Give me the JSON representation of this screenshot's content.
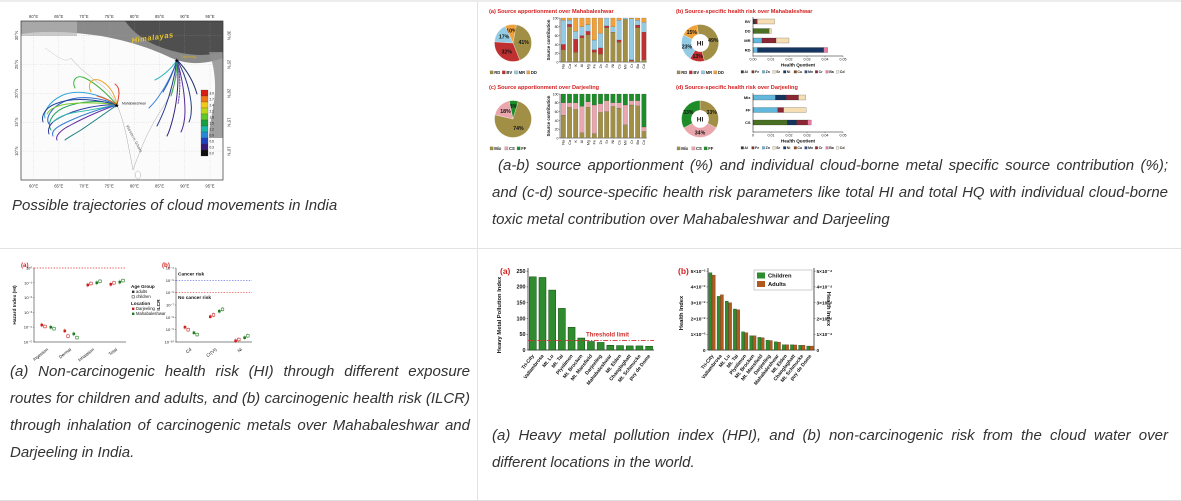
{
  "captions": {
    "map": "Possible trajectories of cloud movements in India",
    "apportionment": "(a-b) source apportionment (%) and individual cloud-borne metal specific source contribution (%); and (c-d) source-specific health risk parameters like total HI and total HQ with individual cloud-borne toxic metal contribution over Mahabaleshwar and Darjeeling",
    "health_risk": "(a) Non-carcinogenic health risk (HI) through different exposure routes for children and adults, and (b) carcinogenic health risk (ILCR) through inhalation of carcinogenic metals over Mahabaleshwar and Darjeeling in India.",
    "hpi": "(a) Heavy metal pollution index (HPI), and (b) non-carcinogenic risk from the cloud water over different locations in the world."
  },
  "map": {
    "himalayas": "Himalayas",
    "western_ghat": "Western Ghats",
    "site1": "Mahabaleshwar",
    "site2": "Darjeeling",
    "lon_ticks": [
      "60°E",
      "65°E",
      "70°E",
      "75°E",
      "80°E",
      "85°E",
      "90°E",
      "95°E"
    ],
    "lat_ticks": [
      "30°N",
      "25°N",
      "20°N",
      "15°N",
      "10°N"
    ],
    "colorbar": {
      "labels": [
        "3.0",
        "2.7",
        "2.4",
        "2.1",
        "1.8",
        "1.5",
        "1.2",
        "0.9",
        "0.6",
        "0.3",
        "0.0"
      ],
      "colors": [
        "#d81e10",
        "#f07818",
        "#f0c818",
        "#b8d818",
        "#60c828",
        "#18a040",
        "#18b8a8",
        "#2888d8",
        "#2040c0",
        "#381878",
        "#101010"
      ]
    }
  },
  "chart_data": [
    {
      "id": "pie_a",
      "type": "pie",
      "title": "(a)  Source apportionment over Mahabaleshwar",
      "start": -25,
      "slices": [
        {
          "label": "DD",
          "value": 10,
          "color": "#f0a13a"
        },
        {
          "label": "RD",
          "value": 41,
          "color": "#a18f45"
        },
        {
          "label": "BV",
          "value": 32,
          "color": "#bf3030"
        },
        {
          "label": "MR",
          "value": 17,
          "color": "#92cbe3"
        }
      ],
      "legend": [
        [
          "RD",
          "#a18f45"
        ],
        [
          "BV",
          "#bf3030"
        ],
        [
          "MR",
          "#92cbe3"
        ],
        [
          "DD",
          "#f0a13a"
        ]
      ]
    },
    {
      "id": "stack_a",
      "type": "stacked-bar",
      "ylabel": "Source contribution",
      "yticks": [
        0,
        20,
        40,
        60,
        80,
        100
      ],
      "categories": [
        "Na",
        "Ca",
        "K",
        "Al",
        "Mg",
        "Fe",
        "Zn",
        "Sr",
        "Ni",
        "Cu",
        "Mn",
        "Cr",
        "Ba",
        "Cd"
      ],
      "series": [
        {
          "name": "RD",
          "color": "#a18f45",
          "values": [
            28,
            80,
            22,
            55,
            62,
            22,
            18,
            78,
            68,
            45,
            97,
            3,
            78,
            5
          ]
        },
        {
          "name": "BV",
          "color": "#bf3030",
          "values": [
            12,
            6,
            30,
            5,
            8,
            6,
            14,
            4,
            0,
            5,
            0,
            2,
            6,
            63
          ]
        },
        {
          "name": "MR",
          "color": "#92cbe3",
          "values": [
            55,
            9,
            18,
            20,
            15,
            22,
            33,
            18,
            12,
            45,
            3,
            93,
            11,
            22
          ]
        },
        {
          "name": "DD",
          "color": "#f0a13a",
          "values": [
            5,
            5,
            30,
            20,
            15,
            50,
            35,
            0,
            20,
            5,
            0,
            2,
            5,
            10
          ]
        }
      ]
    },
    {
      "id": "donut_b",
      "type": "donut",
      "title": "(b)  Source-specific health risk over Mahabaleshwar",
      "center": "HI",
      "start": -10,
      "slices": [
        {
          "label": "RD",
          "value": 49,
          "color": "#a18f45"
        },
        {
          "label": "BV",
          "value": 13,
          "color": "#bf3030"
        },
        {
          "label": "MR",
          "value": 23,
          "color": "#92cbe3"
        },
        {
          "label": "DD",
          "value": 15,
          "color": "#f0a13a"
        }
      ],
      "legend": [
        [
          "RD",
          "#a18f45"
        ],
        [
          "BV",
          "#bf3030"
        ],
        [
          "MR",
          "#92cbe3"
        ],
        [
          "DD",
          "#f0a13a"
        ]
      ]
    },
    {
      "id": "hbar_b",
      "type": "hbar",
      "xlabel": "Health Quotient",
      "xticks": [
        "0.00",
        "0.01",
        "0.02",
        "0.03",
        "0.04",
        "0.05"
      ],
      "xmax": 0.05,
      "rows": [
        {
          "label": "BV",
          "segments": [
            [
              "#3a3a3a",
              0.0012
            ],
            [
              "#8b2635",
              0.0012
            ],
            [
              "#f5deb3",
              0.0096
            ]
          ]
        },
        {
          "label": "DD",
          "segments": [
            [
              "#4a7023",
              0.009
            ],
            [
              "#f5deb3",
              0.0012
            ]
          ]
        },
        {
          "label": "MR",
          "segments": [
            [
              "#62b8dc",
              0.005
            ],
            [
              "#8b2635",
              0.0078
            ],
            [
              "#f5deb3",
              0.0072
            ]
          ]
        },
        {
          "label": "RD",
          "segments": [
            [
              "#62b8dc",
              0.0025
            ],
            [
              "#16355e",
              0.0368
            ],
            [
              "#e87ea1",
              0.0022
            ]
          ]
        }
      ],
      "metals": [
        [
          "Al",
          "#3a3a3a"
        ],
        [
          "Fe",
          "#7a3b2e"
        ],
        [
          "Zn",
          "#62b8dc"
        ],
        [
          "Sr",
          "#f5deb3"
        ],
        [
          "Ni",
          "#16355e"
        ],
        [
          "Cu",
          "#8b4513"
        ],
        [
          "Mn",
          "#2e4d8e"
        ],
        [
          "Cr",
          "#8b2635"
        ],
        [
          "Ba",
          "#e87ea1"
        ],
        [
          "Cd",
          "#f2e8d5"
        ]
      ]
    },
    {
      "id": "pie_c",
      "type": "pie",
      "title": "(c)  Source apportionment over Darjeeling",
      "start": -12,
      "slices": [
        {
          "label": "FF",
          "value": 8,
          "color": "#1e8c28"
        },
        {
          "label": "Mix",
          "value": 74,
          "color": "#a18f45"
        },
        {
          "label": "CS",
          "value": 18,
          "color": "#e9a6ad"
        }
      ],
      "legend": [
        [
          "Mix",
          "#a18f45"
        ],
        [
          "CS",
          "#e9a6ad"
        ],
        [
          "FF",
          "#1e8c28"
        ]
      ]
    },
    {
      "id": "stack_c",
      "type": "stacked-bar",
      "ylabel": "Source contribution",
      "yticks": [
        0,
        20,
        40,
        60,
        80,
        100
      ],
      "categories": [
        "Na",
        "Ca",
        "K",
        "Al",
        "Mg",
        "Fe",
        "Zn",
        "Sr",
        "Ni",
        "Cu",
        "Mn",
        "Cr",
        "Ba",
        "Cd"
      ],
      "series": [
        {
          "name": "Mix",
          "color": "#a18f45",
          "values": [
            52,
            70,
            65,
            12,
            70,
            10,
            58,
            60,
            72,
            68,
            30,
            75,
            73,
            15
          ]
        },
        {
          "name": "CS",
          "color": "#e9a6ad",
          "values": [
            28,
            10,
            15,
            60,
            12,
            65,
            20,
            25,
            8,
            12,
            45,
            10,
            12,
            10
          ]
        },
        {
          "name": "FF",
          "color": "#1e8c28",
          "values": [
            20,
            20,
            20,
            28,
            18,
            25,
            22,
            15,
            20,
            20,
            25,
            15,
            15,
            75
          ]
        }
      ]
    },
    {
      "id": "donut_d",
      "type": "donut",
      "title": "(d)  Source-specific health risk over Darjeeling",
      "center": "HI",
      "start": 0,
      "slices": [
        {
          "label": "Mix",
          "value": 33,
          "color": "#a18f45"
        },
        {
          "label": "CS",
          "value": 34,
          "color": "#e9a6ad"
        },
        {
          "label": "FF",
          "value": 33,
          "color": "#1e8c28"
        }
      ],
      "legend": [
        [
          "Mix",
          "#a18f45"
        ],
        [
          "CS",
          "#e9a6ad"
        ],
        [
          "FF",
          "#1e8c28"
        ]
      ]
    },
    {
      "id": "hbar_d",
      "type": "hbar",
      "xlabel": "Health Quotient",
      "xticks": [
        "0",
        "0.01",
        "0.02",
        "0.03",
        "0.04",
        "0.05"
      ],
      "xmax": 0.05,
      "rows": [
        {
          "label": "Mix",
          "segments": [
            [
              "#62b8dc",
              0.0125
            ],
            [
              "#16355e",
              0.006
            ],
            [
              "#8b2635",
              0.0068
            ],
            [
              "#f5deb3",
              0.004
            ]
          ]
        },
        {
          "label": "FF",
          "segments": [
            [
              "#62b8dc",
              0.0138
            ],
            [
              "#8b2635",
              0.0032
            ],
            [
              "#f5deb3",
              0.0125
            ]
          ]
        },
        {
          "label": "CS",
          "segments": [
            [
              "#4a7023",
              0.019
            ],
            [
              "#16355e",
              0.0052
            ],
            [
              "#8b2635",
              0.0062
            ],
            [
              "#e87ea1",
              0.002
            ]
          ]
        }
      ],
      "metals": [
        [
          "Al",
          "#3a3a3a"
        ],
        [
          "Fe",
          "#7a3b2e"
        ],
        [
          "Zn",
          "#62b8dc"
        ],
        [
          "Sr",
          "#f5deb3"
        ],
        [
          "Ni",
          "#16355e"
        ],
        [
          "Cu",
          "#8b4513"
        ],
        [
          "Mn",
          "#2e4d8e"
        ],
        [
          "Cr",
          "#8b2635"
        ],
        [
          "Ba",
          "#e87ea1"
        ],
        [
          "Cd",
          "#f2e8d5"
        ]
      ]
    },
    {
      "id": "hi_scatter",
      "type": "scatter",
      "panel": "(a)",
      "ylabel": "Hazard Index (HI)",
      "ytick_labels": [
        "10⁰",
        "10⁻¹",
        "10⁻²",
        "10⁻³",
        "10⁻⁴",
        "10⁻⁵"
      ],
      "ymax_exp": 0,
      "ymin_exp": -5,
      "threshold_exp": 0,
      "threshold_color": "#e03030",
      "categories": [
        "Ingestion",
        "Dermal",
        "Inhalation",
        "Total"
      ],
      "points": [
        {
          "cat": 0,
          "loc": "Darjeeling",
          "adults": -3.85,
          "children": -3.95
        },
        {
          "cat": 0,
          "loc": "Mahabaleshwar",
          "adults": -4.0,
          "children": -4.1
        },
        {
          "cat": 1,
          "loc": "Darjeeling",
          "adults": -4.25,
          "children": -4.6
        },
        {
          "cat": 1,
          "loc": "Mahabaleshwar",
          "adults": -4.45,
          "children": -4.7
        },
        {
          "cat": 2,
          "loc": "Darjeeling",
          "adults": -1.15,
          "children": -1.05
        },
        {
          "cat": 2,
          "loc": "Mahabaleshwar",
          "adults": -1.0,
          "children": -0.9
        },
        {
          "cat": 3,
          "loc": "Darjeeling",
          "adults": -1.1,
          "children": -1.0
        },
        {
          "cat": 3,
          "loc": "Mahabaleshwar",
          "adults": -0.95,
          "children": -0.85
        }
      ],
      "legend": {
        "age_title": "Age Group",
        "ages": [
          "adults",
          "children"
        ],
        "loc_title": "Location",
        "locs": [
          [
            "Darjeeling",
            "#cc2020"
          ],
          [
            "Mahabaleshwar",
            "#1f7a1f"
          ]
        ]
      }
    },
    {
      "id": "ilcr_scatter",
      "type": "scatter",
      "panel": "(b)",
      "ylabel": "ILCR",
      "ytick_labels": [
        "10⁻⁴",
        "10⁻⁵",
        "10⁻⁶",
        "10⁻⁷",
        "10⁻⁸",
        "10⁻⁹",
        "10⁻¹⁰"
      ],
      "ymax_exp": -4,
      "ymin_exp": -10,
      "lines": [
        {
          "exp": -5,
          "color": "#5060d8",
          "label": "Cancer risk",
          "label_exp": -4.6
        },
        {
          "exp": -6,
          "color": "#e03030",
          "label": "No cancer risk",
          "label_exp": -6.5
        }
      ],
      "categories": [
        "Cd",
        "Cr(VI)",
        "Ni"
      ],
      "points": [
        {
          "cat": 0,
          "loc": "Darjeeling",
          "adults": -8.8,
          "children": -9.0
        },
        {
          "cat": 0,
          "loc": "Mahabaleshwar",
          "adults": -9.25,
          "children": -9.4
        },
        {
          "cat": 1,
          "loc": "Darjeeling",
          "adults": -7.95,
          "children": -7.8
        },
        {
          "cat": 1,
          "loc": "Mahabaleshwar",
          "adults": -7.5,
          "children": -7.35
        },
        {
          "cat": 2,
          "loc": "Darjeeling",
          "adults": -9.9,
          "children": -9.8
        },
        {
          "cat": 2,
          "loc": "Mahabaleshwar",
          "adults": -9.65,
          "children": -9.5
        }
      ]
    },
    {
      "id": "hpi_bars",
      "type": "bar",
      "panel": "(a)",
      "ylabel": "Heavy Metal Pollution Index",
      "yticks": [
        0,
        50,
        100,
        150,
        200,
        250
      ],
      "ymax": 260,
      "threshold": {
        "value": 30,
        "label": "Threshold limit",
        "color": "#d03030"
      },
      "categories": [
        "Tri-City",
        "Vallambrosa",
        "Mt. Lu",
        "Mt. Tai",
        "Plynlimon",
        "Mt. Brocken",
        "Mt. Mansfield",
        "Darjeeling",
        "Mahabaleshwar",
        "Mt. Elden",
        "Changlaghatt",
        "Mt. Schmucke",
        "puy de Dome"
      ],
      "values": [
        232,
        230,
        190,
        132,
        72,
        38,
        27,
        24,
        15,
        14,
        13,
        13,
        12
      ],
      "bar_color": "#2e8b2e",
      "bar_edge": "#0f4a0f"
    },
    {
      "id": "health_bars",
      "type": "grouped-bar",
      "panel": "(b)",
      "ylabel_left": "Health Index",
      "ylabel_right": "Health Index",
      "yticks_left": [
        "0",
        "1×10⁻²",
        "2×10⁻²",
        "3×10⁻²",
        "4×10⁻²",
        "5×10⁻²"
      ],
      "yticks_right": [
        "0",
        "1×10⁻⁴",
        "2×10⁻⁴",
        "3×10⁻⁴",
        "4×10⁻⁴",
        "5×10⁻⁴"
      ],
      "ymax": 5.2,
      "categories": [
        "Tri-City",
        "Vallambrosa",
        "Mt. Lu",
        "Mt. Tai",
        "Plynlimon",
        "Mt. Brocken",
        "Mt. Mansfield",
        "Darjeeling",
        "Mahabaleshwar",
        "Mt. Elden",
        "Changlaghatt",
        "Mt. Schmucke",
        "puy de Dome"
      ],
      "series": [
        {
          "name": "Children",
          "color": "#2e8b2e",
          "values": [
            4.9,
            3.4,
            3.1,
            2.6,
            1.15,
            0.9,
            0.8,
            0.62,
            0.52,
            0.33,
            0.33,
            0.3,
            0.25
          ]
        },
        {
          "name": "Adults",
          "color": "#b05a1e",
          "values": [
            4.75,
            3.5,
            3.0,
            2.55,
            1.1,
            0.9,
            0.78,
            0.6,
            0.5,
            0.33,
            0.32,
            0.3,
            0.25
          ]
        }
      ]
    }
  ]
}
